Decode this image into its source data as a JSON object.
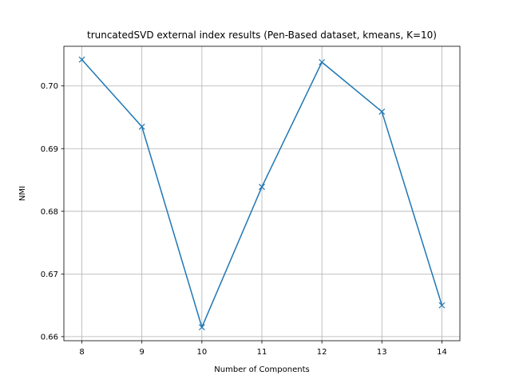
{
  "chart_data": {
    "type": "line",
    "title": "truncatedSVD external index results (Pen-Based dataset, kmeans, K=10)",
    "xlabel": "Number of Components",
    "ylabel": "NMI",
    "x": [
      8,
      9,
      10,
      11,
      12,
      13,
      14
    ],
    "series": [
      {
        "values": [
          0.7042,
          0.6935,
          0.6615,
          0.6839,
          0.7038,
          0.6959,
          0.665
        ],
        "marker": "x",
        "color": "#1f77b4"
      }
    ],
    "x_ticks": [
      "8",
      "9",
      "10",
      "11",
      "12",
      "13",
      "14"
    ],
    "y_ticks": [
      "0.66",
      "0.67",
      "0.68",
      "0.69",
      "0.70"
    ],
    "x_tick_values": [
      8,
      9,
      10,
      11,
      12,
      13,
      14
    ],
    "y_tick_values": [
      0.66,
      0.67,
      0.68,
      0.69,
      0.7
    ],
    "xlim": [
      7.7,
      14.3
    ],
    "ylim": [
      0.65935,
      0.70633
    ],
    "grid": true,
    "legend": false
  }
}
